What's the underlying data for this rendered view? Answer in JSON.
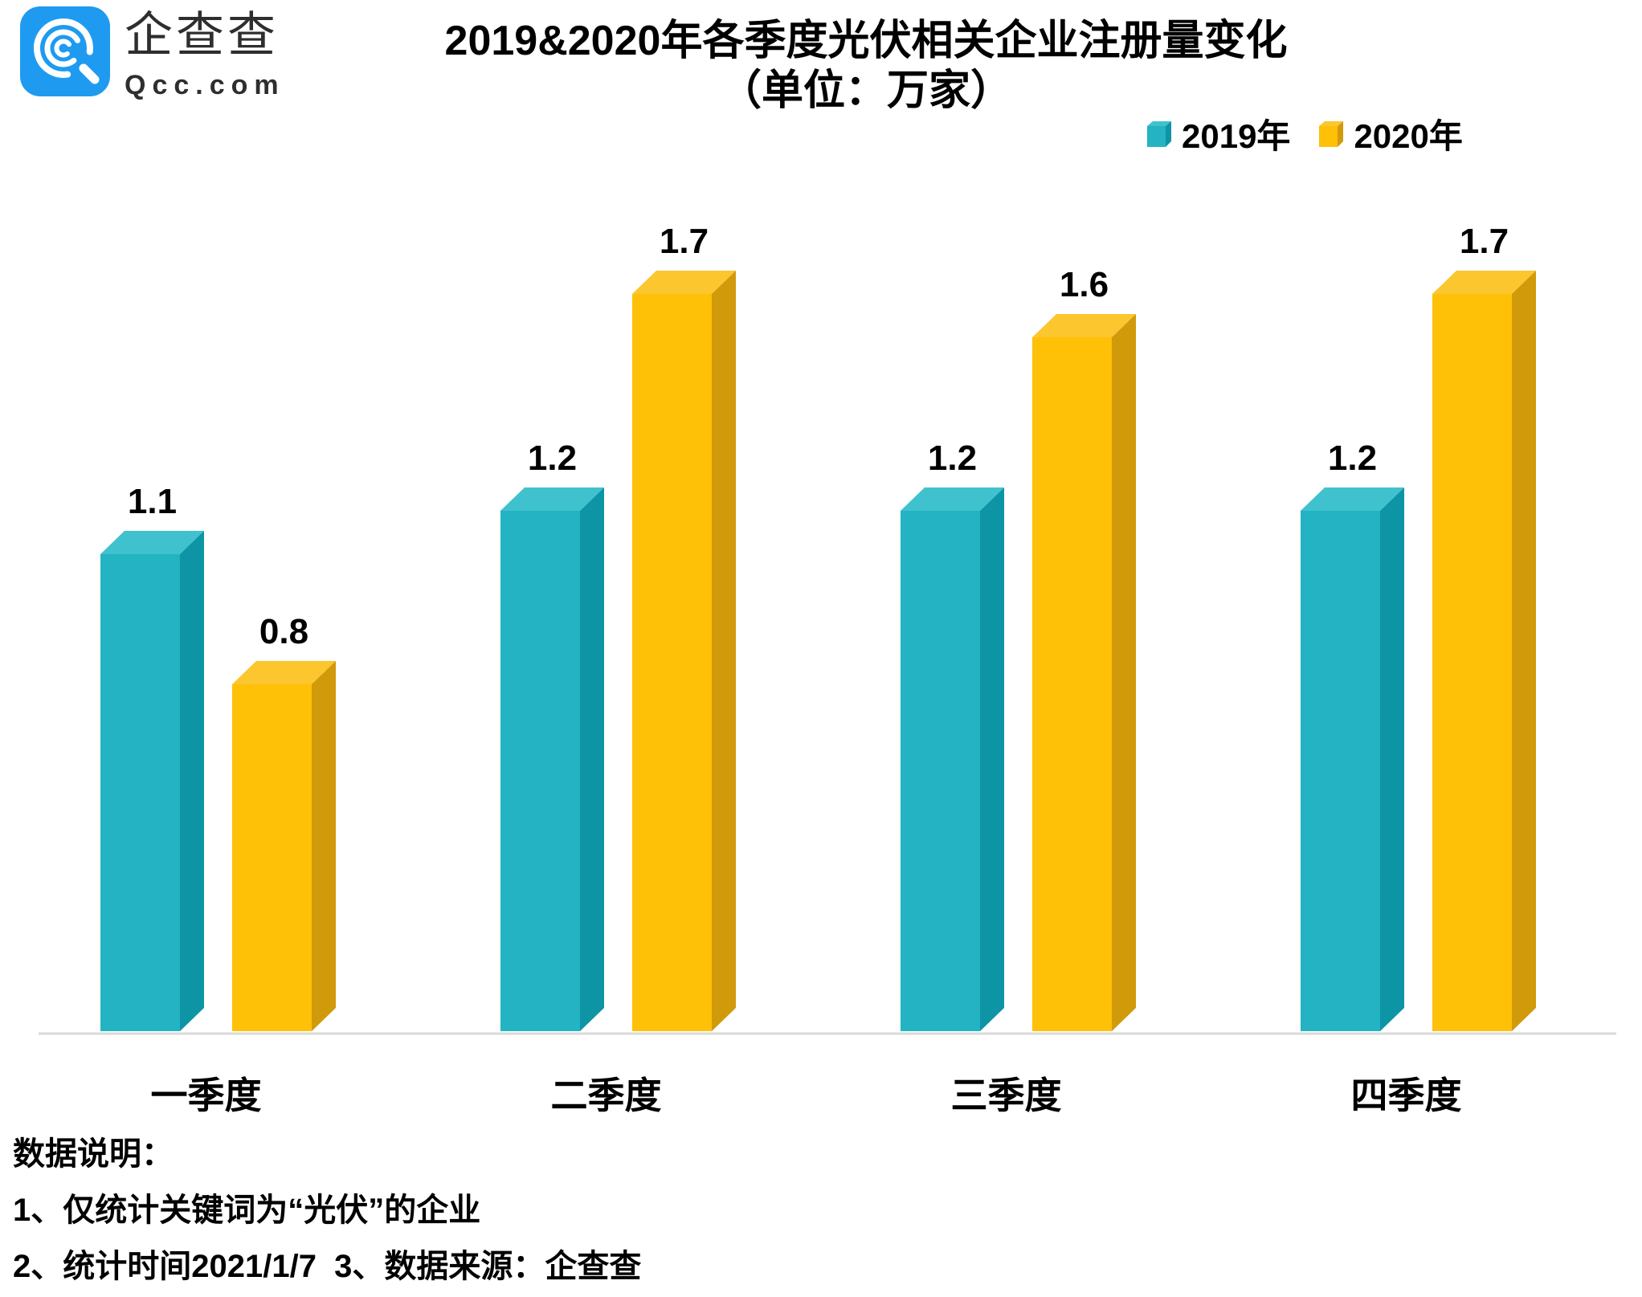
{
  "header": {
    "logo": {
      "icon": "qcc-magnifier-logo-icon",
      "brand_cn": "企查查",
      "brand_en": "Qcc.com",
      "brand_blue": "#1E9BF0"
    },
    "title_line1": "2019&2020年各季度光伏相关企业注册量变化",
    "title_line2": "（单位：万家）"
  },
  "chart_data": {
    "type": "bar",
    "bar_style": "3d",
    "title": "2019&2020年各季度光伏相关企业注册量变化",
    "subtitle": "（单位：万家）",
    "unit": "万家",
    "categories": [
      "一季度",
      "二季度",
      "三季度",
      "四季度"
    ],
    "series": [
      {
        "name": "2019年",
        "values": [
          1.1,
          1.2,
          1.2,
          1.2
        ],
        "color": "#24B3C3",
        "color_top": "#40C2CE",
        "color_side": "#0D95A5"
      },
      {
        "name": "2020年",
        "values": [
          0.8,
          1.7,
          1.6,
          1.7
        ],
        "color": "#FFC008",
        "color_top": "#FCC62F",
        "color_side": "#D19A0B"
      }
    ],
    "value_labels_shown": true,
    "ylim": [
      0,
      1.8
    ],
    "grid": false,
    "y_axis_shown": false,
    "axis_line_color": "#D9D9D9",
    "legend_position": "top-right",
    "value_label_color": "#000000",
    "category_label_color": "#000000"
  },
  "notes": {
    "heading": "数据说明：",
    "line1": "1、仅统计关键词为“光伏”的企业",
    "line2": "2、统计时间2021/1/7  3、数据来源：企查查"
  }
}
